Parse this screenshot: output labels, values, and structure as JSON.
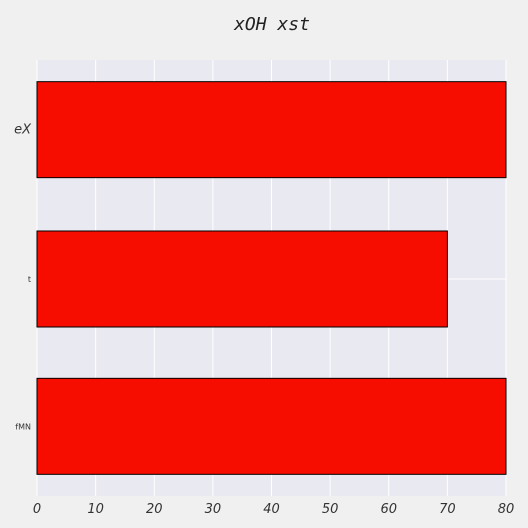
{
  "chart_data": {
    "type": "bar",
    "orientation": "horizontal",
    "title": "xOH xst",
    "xlabel": "",
    "ylabel": "",
    "categories": [
      "eX",
      "t",
      "fMN"
    ],
    "values": [
      80,
      70,
      80
    ],
    "xlim": [
      0,
      80
    ],
    "xticks": [
      0,
      10,
      20,
      30,
      40,
      50,
      60,
      70,
      80
    ],
    "grid": true,
    "colors": {
      "bar": "#f70d00",
      "bar_edge": "#000000",
      "plot_bg": "#e9e9f1",
      "page_bg": "#f0f0f0",
      "grid": "#ffffff"
    }
  }
}
